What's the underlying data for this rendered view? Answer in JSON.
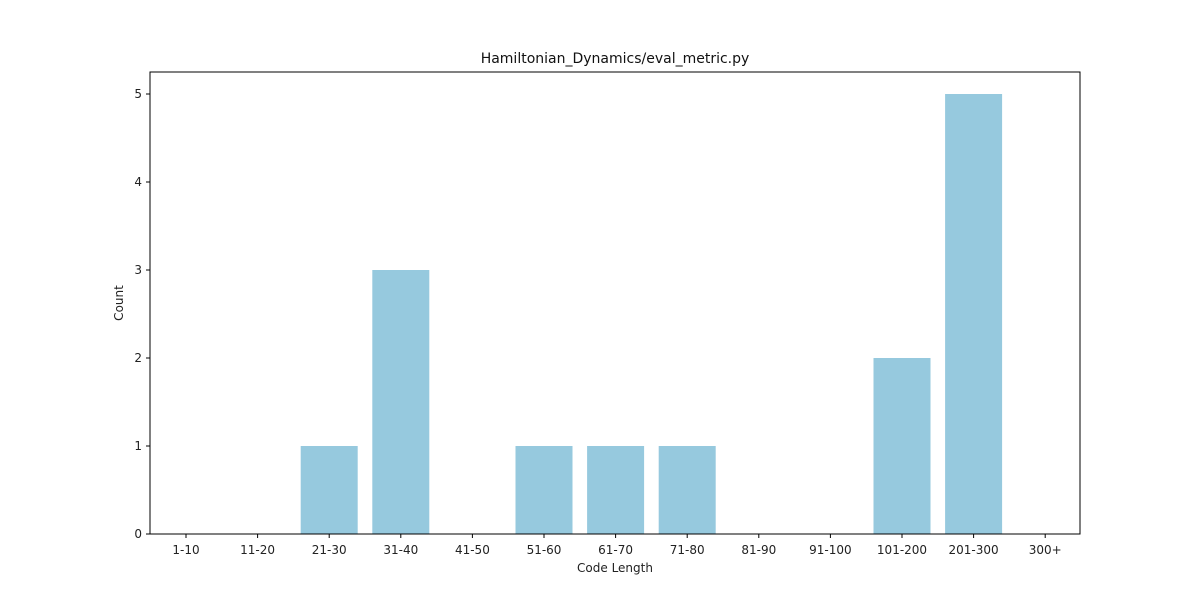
{
  "chart_data": {
    "type": "bar",
    "title": "Hamiltonian_Dynamics/eval_metric.py",
    "xlabel": "Code Length",
    "ylabel": "Count",
    "categories": [
      "1-10",
      "11-20",
      "21-30",
      "31-40",
      "41-50",
      "51-60",
      "61-70",
      "71-80",
      "81-90",
      "91-100",
      "101-200",
      "201-300",
      "300+"
    ],
    "values": [
      0,
      0,
      1,
      3,
      0,
      1,
      1,
      1,
      0,
      0,
      2,
      5,
      0
    ],
    "ylim": [
      0,
      5.25
    ],
    "yticks": [
      "0",
      "1",
      "2",
      "3",
      "4",
      "5"
    ],
    "bar_color": "#96c9de",
    "grid": false,
    "legend": "none"
  }
}
